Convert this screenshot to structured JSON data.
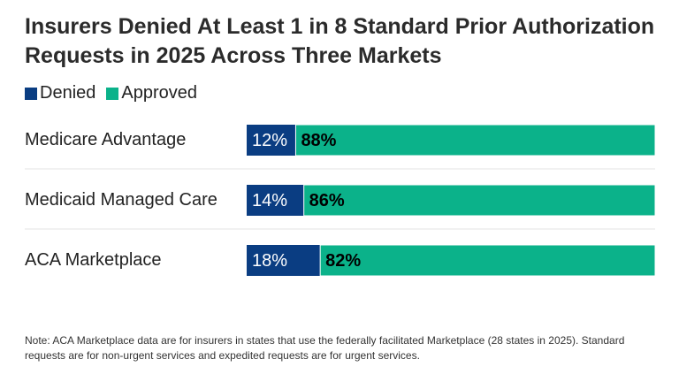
{
  "chart_data": {
    "type": "bar",
    "stacked": true,
    "orientation": "horizontal",
    "title": "Insurers Denied At Least 1 in 8 Standard Prior Authorization Requests in 2025 Across Three Markets",
    "categories": [
      "Medicare Advantage",
      "Medicaid Managed Care",
      "ACA Marketplace"
    ],
    "series": [
      {
        "name": "Denied",
        "values": [
          12,
          14,
          18
        ],
        "labels": [
          "12%",
          "14%",
          "18%"
        ],
        "color": "#0a3d82",
        "label_color": "#ffffff"
      },
      {
        "name": "Approved",
        "values": [
          88,
          86,
          82
        ],
        "labels": [
          "88%",
          "86%",
          "82%"
        ],
        "color": "#0bb28a",
        "label_color": "#000000"
      }
    ],
    "xlim": [
      0,
      100
    ],
    "legend": "top-left",
    "grid": false
  },
  "note": "Note: ACA Marketplace data are for insurers in states that use the federally facilitated Marketplace (28 states in 2025). Standard requests are for non-urgent services and expedited requests are for urgent services."
}
